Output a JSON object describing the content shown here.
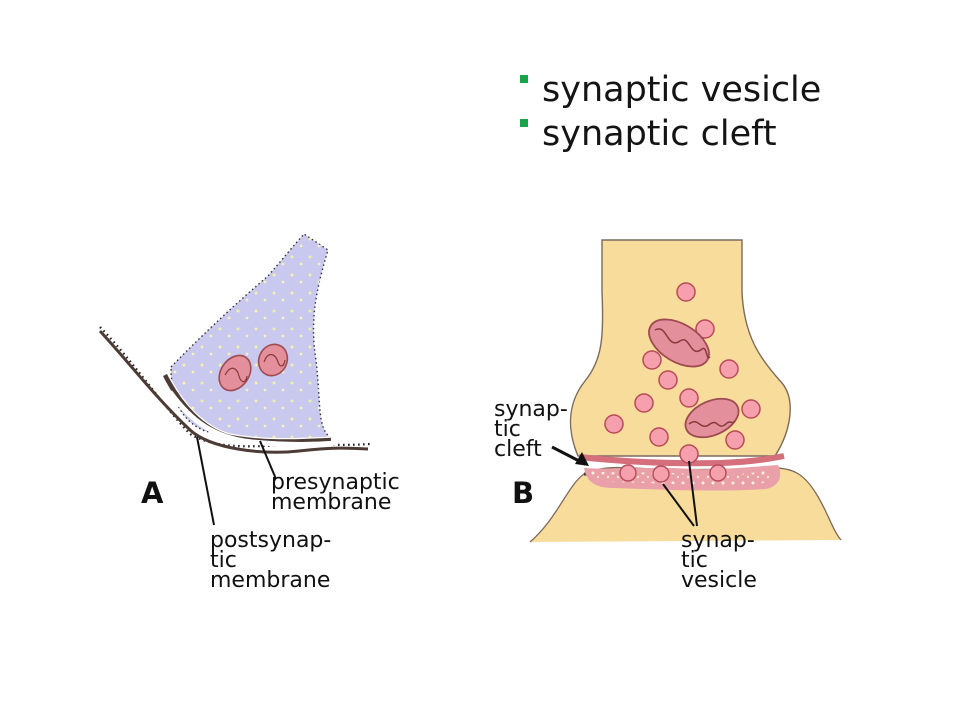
{
  "bullets": [
    {
      "text": "synaptic vesicle",
      "color": "#19a34a"
    },
    {
      "text": "synaptic cleft",
      "color": "#19a34a"
    }
  ],
  "panel_a": {
    "letter": "A",
    "labels": {
      "presynaptic": "presynaptic\n membrane",
      "postsynaptic": "postsynap-\ntic\n membrane"
    }
  },
  "panel_b": {
    "letter": "B",
    "labels": {
      "cleft": "synap-\ntic\n cleft",
      "vesicle": "synap-\ntic\n vesicle"
    }
  },
  "colors": {
    "presynaptic_fill": "#c9c8ee",
    "terminal_fill": "#f7dc9c",
    "mitochondria": "#e37f8b",
    "membrane": "#4d3b35"
  }
}
